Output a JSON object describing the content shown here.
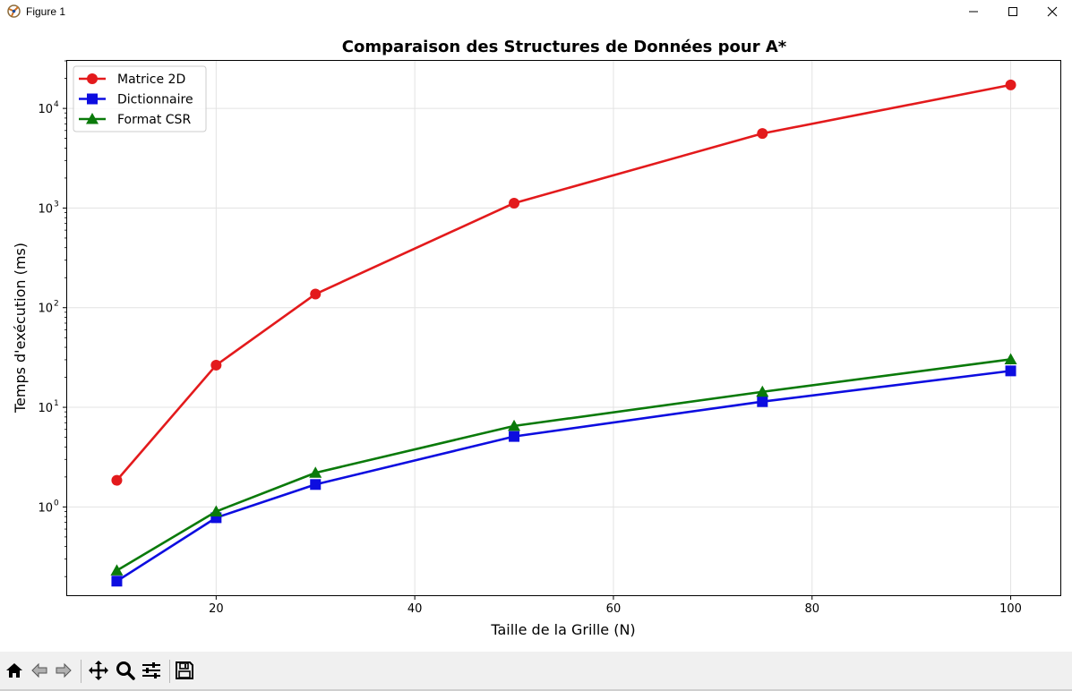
{
  "window": {
    "title": "Figure 1",
    "icons": [
      "matplotlib-icon",
      "minimize-icon",
      "maximize-icon",
      "close-icon"
    ]
  },
  "toolbar": {
    "buttons": [
      "home-icon",
      "back-icon",
      "forward-icon",
      "pan-icon",
      "zoom-icon",
      "configure-subplots-icon",
      "save-icon"
    ]
  },
  "chart_data": {
    "type": "line",
    "title": "Comparaison des Structures de Données pour A*",
    "xlabel": "Taille de la Grille (N)",
    "ylabel": "Temps d'exécution (ms)",
    "x": [
      10,
      20,
      30,
      50,
      75,
      100
    ],
    "xlim": [
      5,
      105
    ],
    "ylim": [
      0.13,
      30000
    ],
    "yscale": "log",
    "x_ticks": [
      "20",
      "40",
      "60",
      "80",
      "100"
    ],
    "y_ticks": [
      "10",
      "10",
      "10",
      "10",
      "10"
    ],
    "y_tick_exponents": [
      "0",
      "1",
      "2",
      "3",
      "4"
    ],
    "grid": true,
    "legend_position": "upper-left",
    "series": [
      {
        "name": "Matrice 2D",
        "color": "#e31a1c",
        "marker": "circle",
        "values": [
          1.85,
          26.5,
          137,
          1120,
          5600,
          17200
        ]
      },
      {
        "name": "Dictionnaire",
        "color": "#0d0de0",
        "marker": "square",
        "values": [
          0.18,
          0.78,
          1.68,
          5.1,
          11.4,
          23.2
        ]
      },
      {
        "name": "Format CSR",
        "color": "#0a7a0a",
        "marker": "triangle",
        "values": [
          0.23,
          0.9,
          2.2,
          6.5,
          14.3,
          30.3
        ]
      }
    ]
  }
}
